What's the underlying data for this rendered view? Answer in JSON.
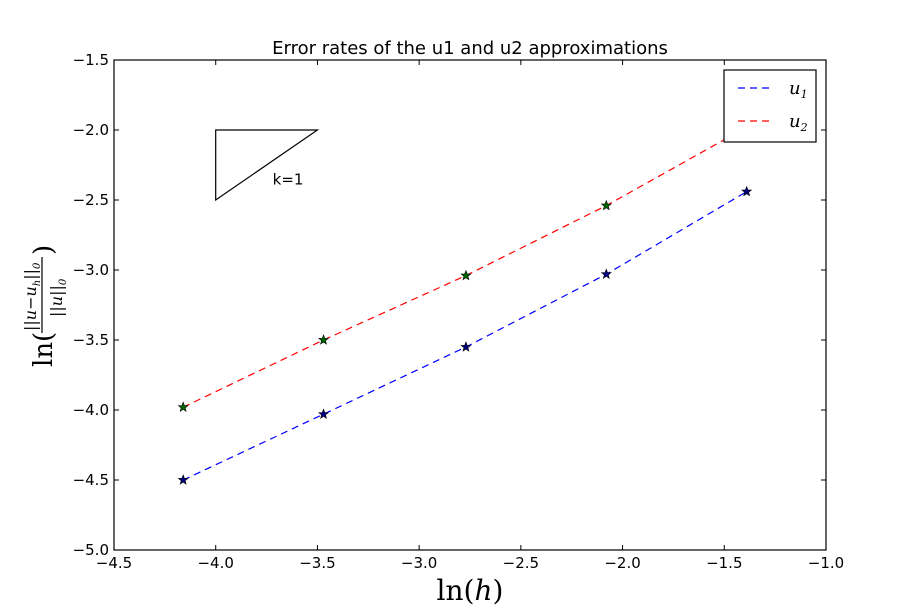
{
  "chart_data": {
    "type": "line",
    "title": "Error rates of the u1 and u2 approximations",
    "xlabel": "ln(h)",
    "ylabel": "ln(||u−u_h||_0 / ||u||_0)",
    "xlim": [
      -4.5,
      -1.0
    ],
    "ylim": [
      -5.0,
      -1.5
    ],
    "xticks": [
      -4.5,
      -4.0,
      -3.5,
      -3.0,
      -2.5,
      -2.0,
      -1.5,
      -1.0
    ],
    "yticks": [
      -1.5,
      -2.0,
      -2.5,
      -3.0,
      -3.5,
      -4.0,
      -4.5,
      -5.0
    ],
    "xtick_labels": [
      "−4.5",
      "−4.0",
      "−3.5",
      "−3.0",
      "−2.5",
      "−2.0",
      "−1.5",
      "−1.0"
    ],
    "ytick_labels": [
      "−1.5",
      "−2.0",
      "−2.5",
      "−3.0",
      "−3.5",
      "−4.0",
      "−4.5",
      "−5.0"
    ],
    "grid": false,
    "legend_position": "top-right",
    "series": [
      {
        "name": "u1",
        "color": "#0000ff",
        "marker_color": "#000080",
        "x": [
          -4.16,
          -3.47,
          -2.77,
          -2.08,
          -1.39
        ],
        "y": [
          -4.5,
          -4.03,
          -3.55,
          -3.03,
          -2.44
        ]
      },
      {
        "name": "u2",
        "color": "#ff0000",
        "marker_color": "#006400",
        "x": [
          -4.16,
          -3.47,
          -2.77,
          -2.08,
          -1.39
        ],
        "y": [
          -3.98,
          -3.5,
          -3.04,
          -2.54,
          -1.98
        ]
      }
    ],
    "annotation": {
      "text": "k=1",
      "triangle": [
        [
          -4.0,
          -2.0
        ],
        [
          -3.5,
          -2.0
        ],
        [
          -4.0,
          -2.5
        ]
      ],
      "text_position": [
        -3.72,
        -2.39
      ]
    }
  }
}
